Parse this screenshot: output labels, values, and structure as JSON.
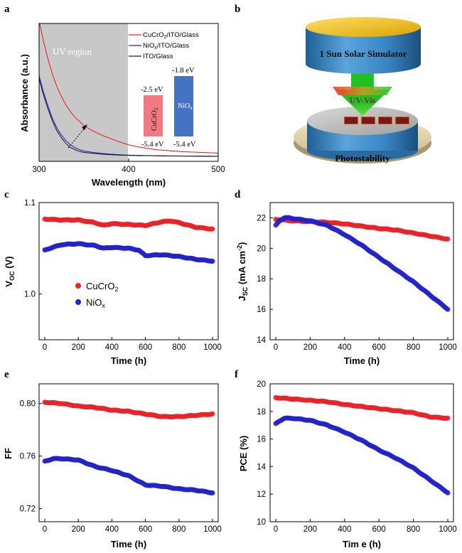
{
  "panels": {
    "a": "a",
    "b": "b",
    "c": "c",
    "d": "d",
    "e": "e",
    "f": "f"
  },
  "colors": {
    "red": "#e8252a",
    "blue": "#2323c8",
    "black": "#222222",
    "uv_region": "#c8c8c8"
  },
  "chart_data": [
    {
      "id": "a",
      "type": "line",
      "title": "",
      "xlabel": "Wavelength (nm)",
      "ylabel": "Absorbance (a.u.)",
      "xlim": [
        300,
        500
      ],
      "xticks": [
        "300",
        "400",
        "500"
      ],
      "shaded_region": {
        "label": "UV region",
        "x": [
          300,
          400
        ]
      },
      "legend_position": "top-right",
      "series": [
        {
          "name_main": "CuCrO",
          "name_sub": "2",
          "name_rest": "/ITO/Glass",
          "color": "#e8252a",
          "x": [
            300,
            305,
            310,
            315,
            320,
            325,
            330,
            335,
            340,
            345,
            350,
            360,
            370,
            380,
            390,
            400,
            410,
            420,
            430,
            440,
            460,
            480,
            500
          ],
          "y": [
            1.02,
            0.87,
            0.74,
            0.63,
            0.54,
            0.47,
            0.41,
            0.36,
            0.32,
            0.29,
            0.26,
            0.22,
            0.19,
            0.165,
            0.14,
            0.12,
            0.105,
            0.095,
            0.085,
            0.08,
            0.07,
            0.065,
            0.06
          ]
        },
        {
          "name_main": "NiO",
          "name_sub": "x",
          "name_rest": "/ITO/Glass",
          "color": "#2323c8",
          "x": [
            300,
            305,
            310,
            315,
            320,
            325,
            330,
            335,
            340,
            345,
            350,
            360,
            370,
            380,
            390,
            400,
            420,
            440,
            460,
            480,
            500
          ],
          "y": [
            0.62,
            0.5,
            0.4,
            0.31,
            0.24,
            0.19,
            0.15,
            0.12,
            0.1,
            0.085,
            0.075,
            0.065,
            0.058,
            0.052,
            0.048,
            0.045,
            0.042,
            0.04,
            0.039,
            0.038,
            0.037
          ]
        },
        {
          "name_main": "ITO/Glass",
          "name_sub": "",
          "name_rest": "",
          "color": "#222222",
          "x": [
            300,
            305,
            310,
            315,
            320,
            325,
            330,
            335,
            340,
            345,
            350,
            360,
            370,
            380,
            390,
            400,
            420,
            440,
            460,
            480,
            500
          ],
          "y": [
            0.6,
            0.48,
            0.38,
            0.29,
            0.22,
            0.17,
            0.13,
            0.1,
            0.085,
            0.072,
            0.065,
            0.058,
            0.052,
            0.048,
            0.045,
            0.043,
            0.041,
            0.039,
            0.038,
            0.037,
            0.036
          ]
        }
      ],
      "inset": {
        "cucro2": {
          "top": "-2.5 eV",
          "bottom": "-5.4 eV",
          "name": "CuCrO",
          "sub": "2",
          "color": "#f07a80"
        },
        "niox": {
          "top": "-1.8 eV",
          "bottom": "-5.4 eV",
          "name": "NiO",
          "sub": "x",
          "color": "#4472c4"
        }
      }
    },
    {
      "id": "c",
      "type": "scatter",
      "xlabel": "Time (h)",
      "ylabel_main": "V",
      "ylabel_sub": "OC",
      "ylabel_unit": " (V)",
      "xlim": [
        0,
        1000
      ],
      "ylim": [
        0.95,
        1.1
      ],
      "xticks": [
        0,
        200,
        400,
        600,
        800,
        1000
      ],
      "yticks": [
        1.0,
        1.1
      ],
      "ytick_labels": [
        "1.0",
        "1.1"
      ],
      "legend_position": "center-left",
      "series": [
        {
          "name_main": "CuCrO",
          "name_sub": "2",
          "color": "#e8252a",
          "x": [
            0,
            100,
            200,
            300,
            350,
            400,
            500,
            600,
            700,
            750,
            800,
            900,
            1000
          ],
          "y": [
            1.082,
            1.081,
            1.081,
            1.078,
            1.075,
            1.077,
            1.076,
            1.075,
            1.079,
            1.08,
            1.078,
            1.073,
            1.071
          ]
        },
        {
          "name_main": "NiO",
          "name_sub": "x",
          "color": "#2323c8",
          "x": [
            0,
            30,
            100,
            200,
            300,
            350,
            400,
            500,
            560,
            600,
            700,
            800,
            900,
            1000
          ],
          "y": [
            1.048,
            1.05,
            1.054,
            1.055,
            1.053,
            1.05,
            1.051,
            1.05,
            1.048,
            1.042,
            1.043,
            1.041,
            1.038,
            1.036
          ]
        }
      ]
    },
    {
      "id": "d",
      "type": "scatter",
      "xlabel": "Time (h)",
      "ylabel_main": "J",
      "ylabel_sub": "SC",
      "ylabel_unit": " (mA cm",
      "ylabel_sup": "-2",
      "ylabel_end": ")",
      "xlim": [
        0,
        1000
      ],
      "ylim": [
        14,
        23
      ],
      "xticks": [
        0,
        200,
        400,
        600,
        800,
        1000
      ],
      "yticks": [
        14,
        16,
        18,
        20,
        22
      ],
      "series": [
        {
          "name_main": "CuCrO",
          "name_sub": "2",
          "color": "#e8252a",
          "x": [
            0,
            100,
            200,
            300,
            400,
            500,
            600,
            700,
            800,
            900,
            1000
          ],
          "y": [
            21.9,
            21.8,
            21.75,
            21.7,
            21.6,
            21.45,
            21.3,
            21.2,
            21.0,
            20.8,
            20.6
          ]
        },
        {
          "name_main": "NiO",
          "name_sub": "x",
          "color": "#2323c8",
          "x": [
            0,
            20,
            50,
            80,
            100,
            200,
            300,
            400,
            500,
            600,
            700,
            800,
            900,
            1000
          ],
          "y": [
            21.5,
            21.8,
            22.0,
            22.0,
            21.95,
            21.8,
            21.5,
            20.9,
            20.2,
            19.4,
            18.6,
            17.8,
            16.9,
            16.0
          ]
        }
      ]
    },
    {
      "id": "e",
      "type": "scatter",
      "xlabel": "Time (h)",
      "ylabel": "FF",
      "xlim": [
        0,
        1000
      ],
      "ylim": [
        0.71,
        0.815
      ],
      "xticks": [
        0,
        200,
        400,
        600,
        800,
        1000
      ],
      "yticks": [
        0.72,
        0.76,
        0.8
      ],
      "ytick_labels": [
        "0.72",
        "0.76",
        "0.80"
      ],
      "series": [
        {
          "name_main": "CuCrO",
          "name_sub": "2",
          "color": "#e8252a",
          "x": [
            0,
            100,
            200,
            300,
            400,
            500,
            600,
            700,
            800,
            900,
            1000
          ],
          "y": [
            0.801,
            0.8,
            0.798,
            0.797,
            0.795,
            0.794,
            0.792,
            0.79,
            0.79,
            0.791,
            0.792
          ]
        },
        {
          "name_main": "NiO",
          "name_sub": "x",
          "color": "#2323c8",
          "x": [
            0,
            50,
            100,
            200,
            300,
            400,
            500,
            600,
            700,
            800,
            900,
            1000
          ],
          "y": [
            0.756,
            0.758,
            0.758,
            0.757,
            0.752,
            0.749,
            0.745,
            0.738,
            0.737,
            0.735,
            0.734,
            0.732
          ]
        }
      ]
    },
    {
      "id": "f",
      "type": "scatter",
      "xlabel": "Tim e (h)",
      "ylabel": "PCE (%)",
      "xlim": [
        0,
        1000
      ],
      "ylim": [
        10,
        20
      ],
      "xticks": [
        0,
        200,
        400,
        600,
        800,
        1000
      ],
      "yticks": [
        10,
        12,
        14,
        16,
        18,
        20
      ],
      "series": [
        {
          "name_main": "CuCrO",
          "name_sub": "2",
          "color": "#e8252a",
          "x": [
            0,
            100,
            200,
            300,
            400,
            500,
            600,
            700,
            800,
            900,
            1000
          ],
          "y": [
            19.0,
            18.9,
            18.8,
            18.7,
            18.5,
            18.35,
            18.2,
            18.05,
            17.9,
            17.6,
            17.5
          ]
        },
        {
          "name_main": "NiO",
          "name_sub": "x",
          "color": "#2323c8",
          "x": [
            0,
            20,
            50,
            100,
            200,
            300,
            400,
            500,
            600,
            700,
            800,
            900,
            1000
          ],
          "y": [
            17.1,
            17.3,
            17.5,
            17.5,
            17.35,
            17.0,
            16.5,
            15.9,
            15.2,
            14.6,
            13.9,
            13.0,
            12.1
          ]
        }
      ]
    }
  ],
  "diagram_b": {
    "simulator_label": "1 Sun Solar  Simulator",
    "light_label": "UV-Vis",
    "stage_label": "Photostability"
  }
}
